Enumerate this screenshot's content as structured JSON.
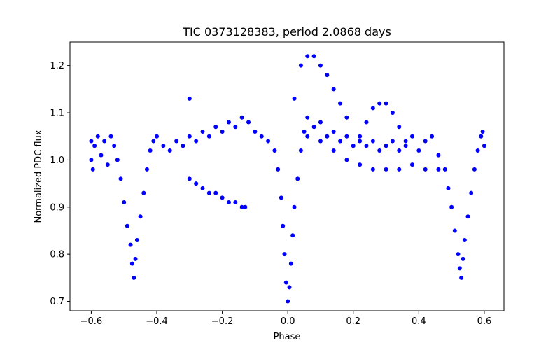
{
  "chart_data": {
    "type": "scatter",
    "title": "TIC 0373128383, period 2.0868 days",
    "xlabel": "Phase",
    "ylabel": "Normalized PDC flux",
    "xlim": [
      -0.665,
      0.66
    ],
    "ylim": [
      0.68,
      1.25
    ],
    "xticks": [
      -0.6,
      -0.4,
      -0.2,
      0.0,
      0.2,
      0.4,
      0.6
    ],
    "xtick_labels": [
      "−0.6",
      "−0.4",
      "−0.2",
      "0.0",
      "0.2",
      "0.4",
      "0.6"
    ],
    "yticks": [
      0.7,
      0.8,
      0.9,
      1.0,
      1.1,
      1.2
    ],
    "ytick_labels": [
      "0.7",
      "0.8",
      "0.9",
      "1.0",
      "1.1",
      "1.2"
    ],
    "grid": false,
    "marker_color": "#0000ff",
    "series": [
      {
        "name": "",
        "points": [
          [
            -0.6,
            1.04
          ],
          [
            -0.6,
            1.0
          ],
          [
            -0.595,
            0.98
          ],
          [
            -0.59,
            1.03
          ],
          [
            -0.58,
            1.05
          ],
          [
            -0.57,
            1.01
          ],
          [
            -0.56,
            1.04
          ],
          [
            -0.55,
            0.99
          ],
          [
            -0.54,
            1.05
          ],
          [
            -0.53,
            1.03
          ],
          [
            -0.52,
            1.0
          ],
          [
            -0.51,
            0.96
          ],
          [
            -0.5,
            0.91
          ],
          [
            -0.49,
            0.86
          ],
          [
            -0.48,
            0.82
          ],
          [
            -0.475,
            0.78
          ],
          [
            -0.47,
            0.75
          ],
          [
            -0.465,
            0.79
          ],
          [
            -0.46,
            0.83
          ],
          [
            -0.45,
            0.88
          ],
          [
            -0.44,
            0.93
          ],
          [
            -0.43,
            0.98
          ],
          [
            -0.42,
            1.02
          ],
          [
            -0.41,
            1.04
          ],
          [
            -0.4,
            1.05
          ],
          [
            -0.38,
            1.03
          ],
          [
            -0.36,
            1.02
          ],
          [
            -0.34,
            1.04
          ],
          [
            -0.32,
            1.03
          ],
          [
            -0.3,
            1.05
          ],
          [
            -0.28,
            1.04
          ],
          [
            -0.26,
            1.06
          ],
          [
            -0.24,
            1.05
          ],
          [
            -0.22,
            1.07
          ],
          [
            -0.2,
            1.06
          ],
          [
            -0.18,
            1.08
          ],
          [
            -0.16,
            1.07
          ],
          [
            -0.14,
            1.09
          ],
          [
            -0.12,
            1.08
          ],
          [
            -0.1,
            1.06
          ],
          [
            -0.08,
            1.05
          ],
          [
            -0.06,
            1.04
          ],
          [
            -0.04,
            1.02
          ],
          [
            -0.03,
            0.98
          ],
          [
            -0.02,
            0.92
          ],
          [
            -0.015,
            0.86
          ],
          [
            -0.01,
            0.8
          ],
          [
            -0.005,
            0.74
          ],
          [
            0.0,
            0.7
          ],
          [
            0.005,
            0.73
          ],
          [
            0.01,
            0.78
          ],
          [
            0.015,
            0.84
          ],
          [
            0.02,
            0.9
          ],
          [
            0.03,
            0.96
          ],
          [
            0.04,
            1.02
          ],
          [
            0.05,
            1.06
          ],
          [
            0.06,
            1.09
          ],
          [
            0.08,
            1.07
          ],
          [
            0.1,
            1.08
          ],
          [
            0.12,
            1.05
          ],
          [
            0.14,
            1.06
          ],
          [
            0.16,
            1.04
          ],
          [
            0.18,
            1.05
          ],
          [
            0.2,
            1.03
          ],
          [
            0.22,
            1.04
          ],
          [
            0.24,
            1.03
          ],
          [
            0.26,
            1.04
          ],
          [
            0.28,
            1.02
          ],
          [
            0.3,
            1.03
          ],
          [
            0.32,
            1.04
          ],
          [
            0.34,
            1.02
          ],
          [
            0.36,
            1.03
          ],
          [
            0.38,
            1.05
          ],
          [
            0.4,
            1.02
          ],
          [
            0.42,
            1.04
          ],
          [
            0.44,
            1.05
          ],
          [
            0.46,
            1.01
          ],
          [
            0.48,
            0.98
          ],
          [
            0.49,
            0.94
          ],
          [
            0.5,
            0.9
          ],
          [
            0.51,
            0.85
          ],
          [
            0.52,
            0.8
          ],
          [
            0.525,
            0.77
          ],
          [
            0.53,
            0.75
          ],
          [
            0.535,
            0.79
          ],
          [
            0.54,
            0.83
          ],
          [
            0.55,
            0.88
          ],
          [
            0.56,
            0.93
          ],
          [
            0.57,
            0.98
          ],
          [
            0.58,
            1.02
          ],
          [
            0.59,
            1.05
          ],
          [
            0.595,
            1.06
          ],
          [
            0.6,
            1.03
          ],
          [
            -0.3,
            0.96
          ],
          [
            -0.28,
            0.95
          ],
          [
            -0.26,
            0.94
          ],
          [
            -0.24,
            0.93
          ],
          [
            -0.22,
            0.93
          ],
          [
            -0.2,
            0.92
          ],
          [
            -0.18,
            0.91
          ],
          [
            -0.16,
            0.91
          ],
          [
            -0.14,
            0.9
          ],
          [
            -0.13,
            0.9
          ],
          [
            0.02,
            1.13
          ],
          [
            0.04,
            1.2
          ],
          [
            0.06,
            1.22
          ],
          [
            0.08,
            1.22
          ],
          [
            0.1,
            1.2
          ],
          [
            0.12,
            1.18
          ],
          [
            0.14,
            1.15
          ],
          [
            0.16,
            1.12
          ],
          [
            0.18,
            1.09
          ],
          [
            -0.3,
            1.13
          ],
          [
            0.22,
            1.05
          ],
          [
            0.24,
            1.08
          ],
          [
            0.26,
            1.11
          ],
          [
            0.28,
            1.12
          ],
          [
            0.3,
            1.12
          ],
          [
            0.32,
            1.1
          ],
          [
            0.34,
            1.07
          ],
          [
            0.36,
            1.04
          ],
          [
            0.06,
            1.05
          ],
          [
            0.1,
            1.04
          ],
          [
            0.14,
            1.02
          ],
          [
            0.18,
            1.0
          ],
          [
            0.22,
            0.99
          ],
          [
            0.26,
            0.98
          ],
          [
            0.3,
            0.98
          ],
          [
            0.34,
            0.98
          ],
          [
            0.38,
            0.99
          ],
          [
            0.42,
            0.98
          ],
          [
            0.46,
            0.98
          ]
        ]
      }
    ]
  }
}
